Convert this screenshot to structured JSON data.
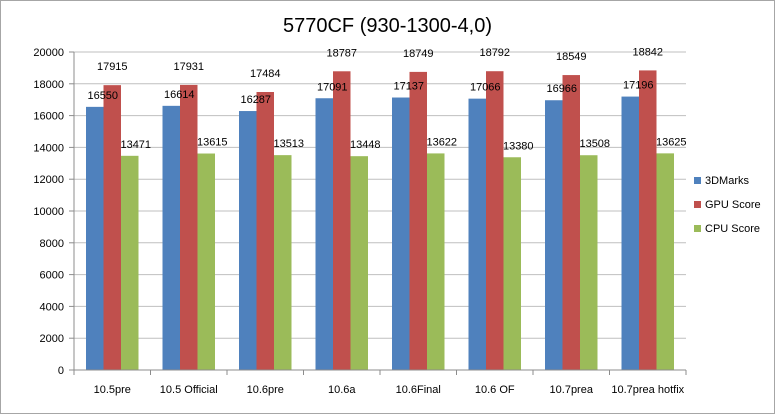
{
  "chart_data": {
    "type": "bar",
    "title": "5770CF (930-1300-4,0)",
    "xlabel": "",
    "ylabel": "",
    "categories": [
      "10.5pre",
      "10.5 Official",
      "10.6pre",
      "10.6a",
      "10.6Final",
      "10.6 OF",
      "10.7prea",
      "10.7prea hotfix"
    ],
    "series": [
      {
        "name": "3DMarks",
        "color": "#4f81bd",
        "values": [
          16550,
          16614,
          16287,
          17091,
          17137,
          17066,
          16966,
          17196
        ]
      },
      {
        "name": "GPU Score",
        "color": "#c0504d",
        "values": [
          17915,
          17931,
          17484,
          18787,
          18749,
          18792,
          18549,
          18842
        ]
      },
      {
        "name": "CPU Score",
        "color": "#9bbb59",
        "values": [
          13471,
          13615,
          13513,
          13448,
          13622,
          13380,
          13508,
          13625
        ]
      }
    ],
    "ylim": [
      0,
      20000
    ],
    "yticks": [
      0,
      2000,
      4000,
      6000,
      8000,
      10000,
      12000,
      14000,
      16000,
      18000,
      20000
    ],
    "grid": true,
    "legend": "right"
  }
}
